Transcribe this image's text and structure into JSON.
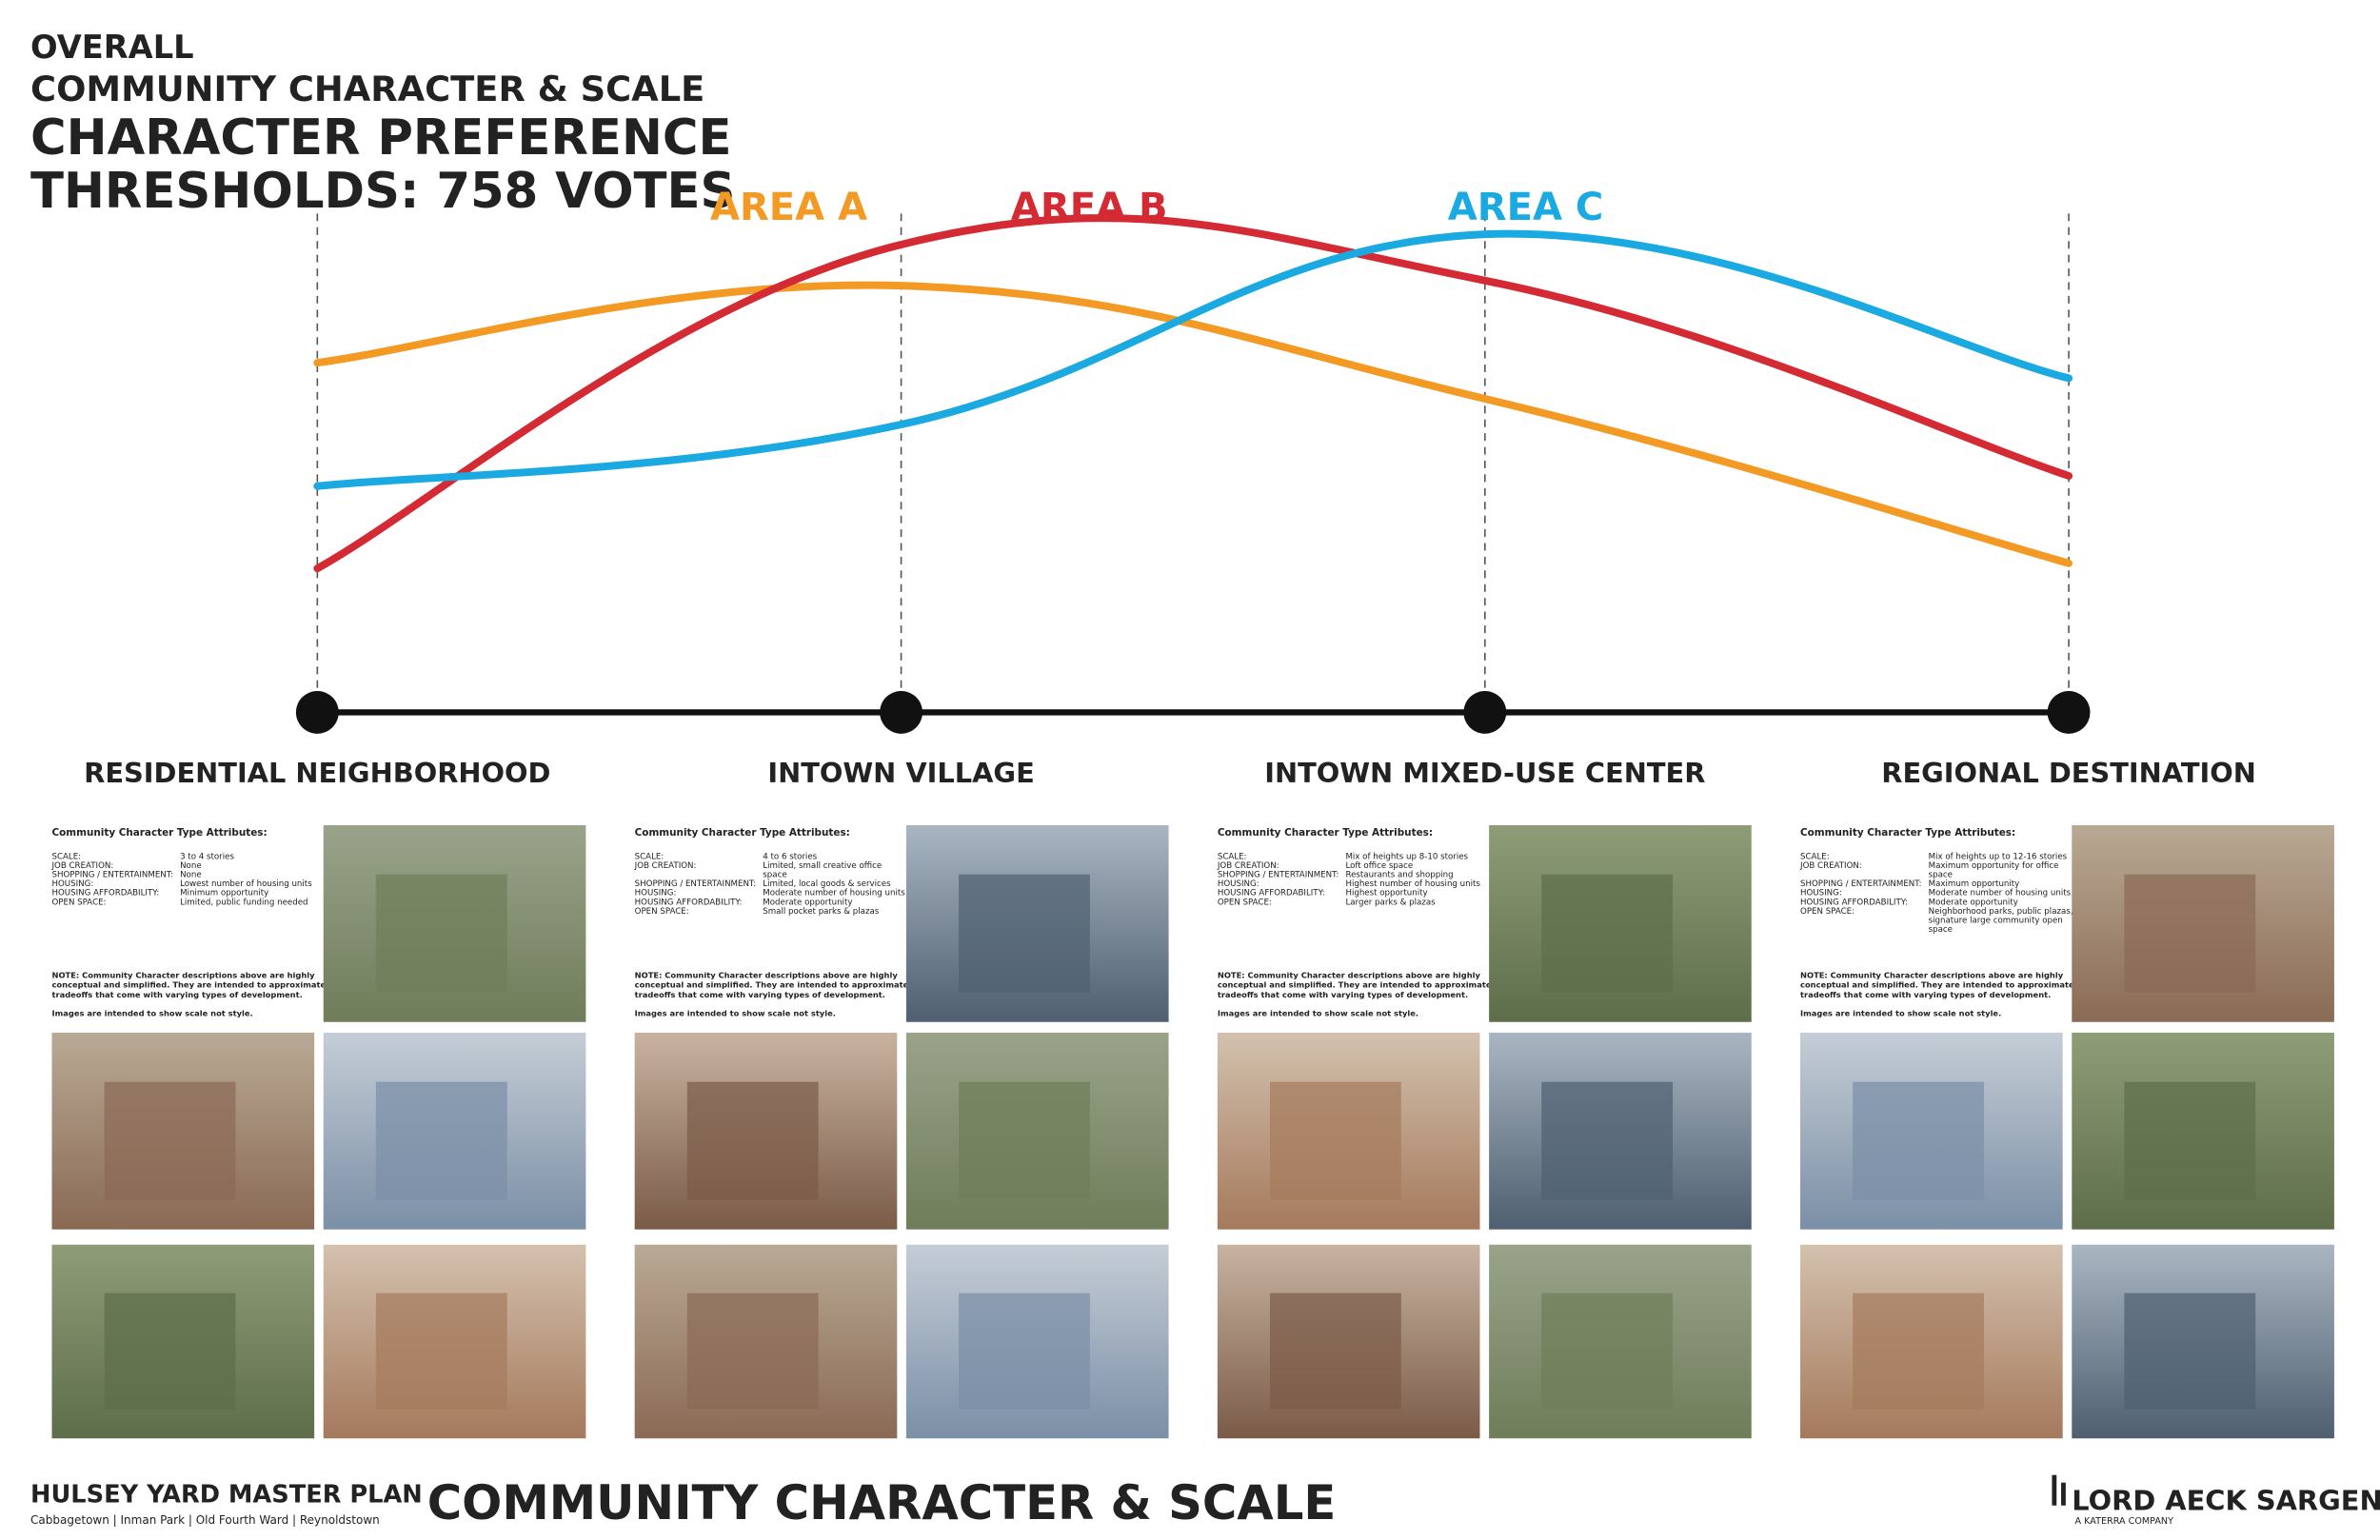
{
  "header": {
    "line1": "OVERALL",
    "line2": "COMMUNITY CHARACTER & SCALE",
    "line3": "CHARACTER PREFERENCE",
    "line4": "THRESHOLDS: 758 VOTES"
  },
  "chart_data": {
    "type": "line",
    "categories": [
      "RESIDENTIAL NEIGHBORHOOD",
      "INTOWN VILLAGE",
      "INTOWN MIXED-USE CENTER",
      "REGIONAL DESTINATION"
    ],
    "ylim": [
      0,
      100
    ],
    "series": [
      {
        "name": "AREA A",
        "color": "#f39a24",
        "values": [
          68,
          83,
          61,
          29
        ]
      },
      {
        "name": "AREA B",
        "color": "#d42a34",
        "values": [
          28,
          91,
          84,
          46
        ]
      },
      {
        "name": "AREA C",
        "color": "#1ba9e1",
        "values": [
          44,
          56,
          93,
          65
        ]
      }
    ]
  },
  "panels": {
    "heading": "Community Character Type Attributes:",
    "note": "NOTE: Community Character descriptions above are highly conceptual and simplified. They are intended to approximate tradeoffs that come with varying types of development.",
    "images_note": "Images are intended to show scale not style.",
    "items": [
      [
        [
          "SCALE:",
          "3 to 4 stories"
        ],
        [
          "JOB CREATION:",
          "None"
        ],
        [
          "SHOPPING / ENTERTAINMENT:",
          "None"
        ],
        [
          "HOUSING:",
          "Lowest number of housing units"
        ],
        [
          "HOUSING AFFORDABILITY:",
          "Minimum opportunity"
        ],
        [
          "OPEN SPACE:",
          "Limited, public funding needed"
        ]
      ],
      [
        [
          "SCALE:",
          "4 to 6 stories"
        ],
        [
          "JOB CREATION:",
          "Limited, small creative office space"
        ],
        [
          "SHOPPING / ENTERTAINMENT:",
          "Limited, local goods & services"
        ],
        [
          "HOUSING:",
          "Moderate number of housing units"
        ],
        [
          "HOUSING AFFORDABILITY:",
          "Moderate opportunity"
        ],
        [
          "OPEN SPACE:",
          "Small pocket parks & plazas"
        ]
      ],
      [
        [
          "SCALE:",
          "Mix of heights up 8-10 stories"
        ],
        [
          "JOB CREATION:",
          "Loft office space"
        ],
        [
          "SHOPPING / ENTERTAINMENT:",
          "Restaurants and shopping"
        ],
        [
          "HOUSING:",
          "Highest number of housing units"
        ],
        [
          "HOUSING AFFORDABILITY:",
          "Highest opportunity"
        ],
        [
          "OPEN SPACE:",
          "Larger parks & plazas"
        ]
      ],
      [
        [
          "SCALE:",
          "Mix of heights up to 12-16 stories"
        ],
        [
          "JOB CREATION:",
          "Maximum opportunity for office space"
        ],
        [
          "SHOPPING / ENTERTAINMENT:",
          "Maximum opportunity"
        ],
        [
          "HOUSING:",
          "Moderate number of housing units"
        ],
        [
          "HOUSING AFFORDABILITY:",
          "Moderate opportunity"
        ],
        [
          "OPEN SPACE:",
          "Neighborhood parks, public plazas, signature large community open space"
        ]
      ]
    ]
  },
  "footer": {
    "project": "HULSEY YARD MASTER PLAN",
    "neighborhoods": "Cabbagetown | Inman Park | Old Fourth Ward | Reynoldstown",
    "title": "COMMUNITY CHARACTER & SCALE",
    "firm": "LORD AECK SARGENT",
    "firm_sub": "A KATERRA COMPANY"
  }
}
